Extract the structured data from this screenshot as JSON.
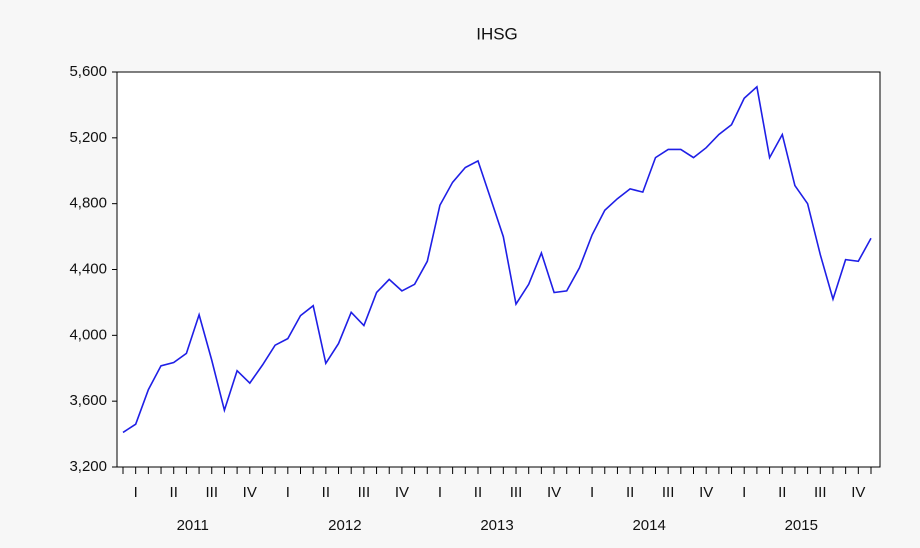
{
  "chart_data": {
    "type": "line",
    "title": "IHSG",
    "series": [
      {
        "name": "IHSG",
        "color": "#1f1fe6",
        "values": [
          3410,
          3460,
          3670,
          3815,
          3835,
          3890,
          4125,
          3850,
          3545,
          3785,
          3710,
          3820,
          3940,
          3980,
          4120,
          4180,
          3830,
          3950,
          4140,
          4060,
          4260,
          4340,
          4270,
          4310,
          4450,
          4790,
          4930,
          5020,
          5060,
          4830,
          4600,
          4190,
          4310,
          4500,
          4260,
          4270,
          4410,
          4610,
          4760,
          4830,
          4890,
          4870,
          5080,
          5130,
          5130,
          5080,
          5140,
          5220,
          5280,
          5440,
          5510,
          5080,
          5220,
          4910,
          4800,
          4490,
          4220,
          4460,
          4450,
          4590
        ]
      }
    ],
    "quarters": [
      "I",
      "II",
      "III",
      "IV",
      "I",
      "II",
      "III",
      "IV",
      "I",
      "II",
      "III",
      "IV",
      "I",
      "II",
      "III",
      "IV",
      "I",
      "II",
      "III",
      "IV"
    ],
    "years": [
      "2011",
      "2012",
      "2013",
      "2014",
      "2015"
    ],
    "ylim": [
      3200,
      5600
    ],
    "yticks": [
      {
        "value": 3200,
        "label": "3,200"
      },
      {
        "value": 3600,
        "label": "3,600"
      },
      {
        "value": 4000,
        "label": "4,000"
      },
      {
        "value": 4400,
        "label": "4,400"
      },
      {
        "value": 4800,
        "label": "4,800"
      },
      {
        "value": 5200,
        "label": "5,200"
      },
      {
        "value": 5600,
        "label": "5,600"
      }
    ]
  }
}
